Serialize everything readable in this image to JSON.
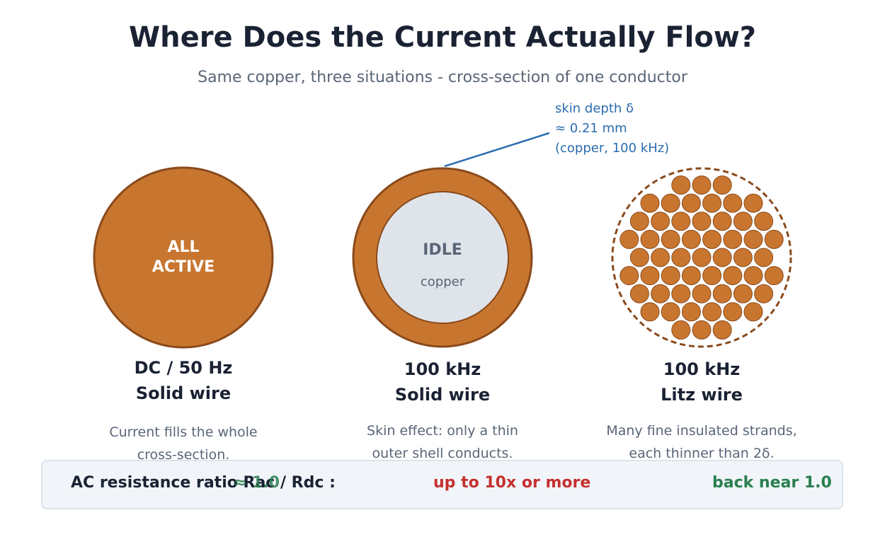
{
  "title": "Where Does the Current Actually Flow?",
  "subtitle": "Same copper, three situations - cross-section of one conductor",
  "colors": {
    "copper": "#c8762f",
    "copper_edge": "#8a4a1c",
    "idle_fill": "#dfe4eb",
    "skin_accent": "#2b6cb0",
    "good": "#2a7f4f",
    "bad": "#c53030"
  },
  "skin_annotation": {
    "line1": "skin depth δ",
    "line2": "≈ 0.21 mm",
    "line3": "(copper, 100 kHz)"
  },
  "panels": [
    {
      "circle_lines": [
        "ALL",
        "ACTIVE"
      ],
      "heading_line1": "DC / 50 Hz",
      "heading_line2": "Solid wire",
      "desc_line1": "Current fills the whole",
      "desc_line2": "cross-section."
    },
    {
      "circle_main": "IDLE",
      "circle_sub": "copper",
      "heading_line1": "100 kHz",
      "heading_line2": "Solid wire",
      "desc_line1": "Skin effect: only a thin",
      "desc_line2": "outer shell conducts."
    },
    {
      "heading_line1": "100 kHz",
      "heading_line2": "Litz wire",
      "desc_line1": "Many fine insulated strands,",
      "desc_line2": "each thinner than 2δ."
    }
  ],
  "bottom": {
    "label": "AC resistance ratio  Rac / Rdc :",
    "value1": "≈ 1.0",
    "value2": "up to 10x or more",
    "value3": "back near 1.0"
  }
}
